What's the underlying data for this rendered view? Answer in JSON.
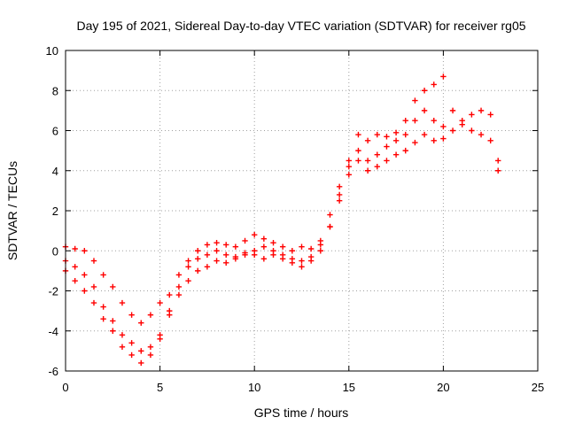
{
  "chart_data": {
    "type": "scatter",
    "title": "Day 195 of 2021, Sidereal Day-to-day VTEC variation (SDTVAR) for receiver rg05",
    "xlabel": "GPS time / hours",
    "ylabel": "SDTVAR / TECUs",
    "xlim": [
      0,
      25
    ],
    "ylim": [
      -6,
      10
    ],
    "x_ticks": [
      0,
      5,
      10,
      15,
      20,
      25
    ],
    "y_ticks": [
      -6,
      -4,
      -2,
      0,
      2,
      4,
      6,
      8,
      10
    ],
    "x_tick_labels": [
      "0",
      "5",
      "10",
      "15",
      "20",
      "25"
    ],
    "y_tick_labels": [
      "-6",
      "-4",
      "-2",
      "0",
      "2",
      "4",
      "6",
      "8",
      "10"
    ],
    "grid": true,
    "marker": "plus",
    "color": "#ff0000",
    "series": [
      {
        "x": [
          0.0,
          0.5,
          1.0,
          1.5,
          2.0,
          2.5,
          3.0,
          3.5,
          4.0,
          4.5,
          5.0,
          5.5,
          6.0,
          6.5,
          7.0,
          7.5,
          8.0,
          8.5,
          9.0,
          9.5,
          10.0,
          10.5,
          11.0,
          11.5,
          12.0,
          12.5,
          13.0,
          13.5,
          14.0,
          14.5,
          15.0,
          15.5,
          16.0,
          16.5,
          17.0,
          17.5,
          18.0,
          18.5,
          19.0,
          19.5,
          20.0
        ],
        "y": [
          0.2,
          0.1,
          0.0,
          -0.5,
          -1.2,
          -1.8,
          -2.6,
          -3.2,
          -3.6,
          -3.2,
          -2.6,
          -2.2,
          -1.2,
          -0.5,
          0.0,
          0.3,
          0.4,
          0.3,
          0.2,
          0.5,
          0.8,
          0.6,
          0.4,
          0.2,
          0.0,
          0.2,
          0.1,
          0.5,
          1.2,
          2.8,
          4.5,
          5.8,
          5.5,
          5.8,
          5.7,
          5.9,
          6.5,
          7.5,
          8.0,
          8.3,
          8.7
        ]
      },
      {
        "x": [
          0.0,
          0.5,
          1.0,
          1.5,
          2.0,
          2.5,
          3.0,
          3.5,
          4.0,
          4.5,
          5.0,
          5.5,
          6.0,
          6.5,
          7.0,
          7.5,
          8.0,
          8.5,
          9.0,
          9.5,
          10.0,
          10.5,
          11.0,
          11.5,
          12.0,
          12.5,
          13.0,
          13.5,
          14.0,
          14.5,
          15.0,
          15.5,
          16.0,
          16.5,
          17.0,
          17.5,
          18.0,
          18.5,
          19.0,
          19.5,
          20.0,
          20.5,
          21.0,
          21.5,
          22.0,
          22.5,
          22.9
        ],
        "y": [
          -0.5,
          -0.8,
          -1.2,
          -1.8,
          -2.8,
          -3.5,
          -4.2,
          -4.6,
          -5.0,
          -4.8,
          -4.2,
          -3.0,
          -1.8,
          -0.8,
          -0.4,
          -0.2,
          0.0,
          -0.2,
          -0.3,
          -0.1,
          0.0,
          0.2,
          0.0,
          -0.2,
          -0.4,
          -0.5,
          -0.3,
          0.3,
          1.8,
          3.2,
          4.2,
          5.0,
          4.5,
          4.8,
          5.2,
          5.5,
          5.8,
          6.5,
          7.0,
          6.5,
          6.2,
          6.0,
          6.5,
          6.0,
          5.8,
          5.5,
          4.5
        ]
      },
      {
        "x": [
          0.0,
          0.5,
          1.0,
          1.5,
          2.0,
          2.5,
          3.0,
          3.5,
          4.0,
          4.5,
          5.0,
          5.5,
          6.0,
          6.5,
          7.0,
          7.5,
          8.0,
          8.5,
          9.0,
          9.5,
          10.0,
          10.5,
          11.0,
          11.5,
          12.0,
          12.5,
          13.0,
          13.5,
          14.0,
          14.5,
          15.0,
          15.5,
          16.0,
          16.5,
          17.0,
          17.5,
          18.0,
          18.5,
          19.0,
          19.5,
          20.0,
          20.5,
          21.0,
          21.5,
          22.0,
          22.5,
          22.9
        ],
        "y": [
          -1.0,
          -1.5,
          -2.0,
          -2.6,
          -3.4,
          -4.0,
          -4.8,
          -5.2,
          -5.6,
          -5.2,
          -4.4,
          -3.2,
          -2.2,
          -1.5,
          -1.0,
          -0.8,
          -0.5,
          -0.6,
          -0.4,
          -0.2,
          -0.2,
          -0.4,
          -0.2,
          -0.4,
          -0.6,
          -0.8,
          -0.5,
          0.0,
          1.2,
          2.5,
          3.8,
          4.5,
          4.0,
          4.2,
          4.5,
          4.8,
          5.0,
          5.4,
          5.8,
          5.5,
          5.6,
          7.0,
          6.3,
          6.8,
          7.0,
          6.8,
          4.0
        ]
      }
    ]
  }
}
